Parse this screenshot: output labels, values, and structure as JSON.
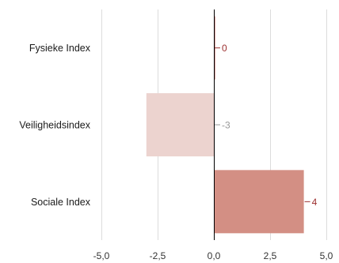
{
  "chart_data": {
    "type": "bar",
    "orientation": "horizontal",
    "categories": [
      "Fysieke Index",
      "Veiligheidsindex",
      "Sociale Index"
    ],
    "values": [
      0,
      -3,
      4
    ],
    "value_labels": [
      "0",
      "-3",
      "4"
    ],
    "bar_colors": [
      "#b5413a",
      "#ecd3cf",
      "#d38f84"
    ],
    "label_colors": [
      "#9c2f2f",
      "#999999",
      "#9c2f2f"
    ],
    "xlim": [
      -5,
      5
    ],
    "xticks": [
      -5,
      -2.5,
      0,
      2.5,
      5
    ],
    "xtick_labels": [
      "-5,0",
      "-2,5",
      "0,0",
      "2,5",
      "5,0"
    ],
    "grid": true,
    "legend": "none",
    "title": "",
    "xlabel": "",
    "ylabel": ""
  }
}
